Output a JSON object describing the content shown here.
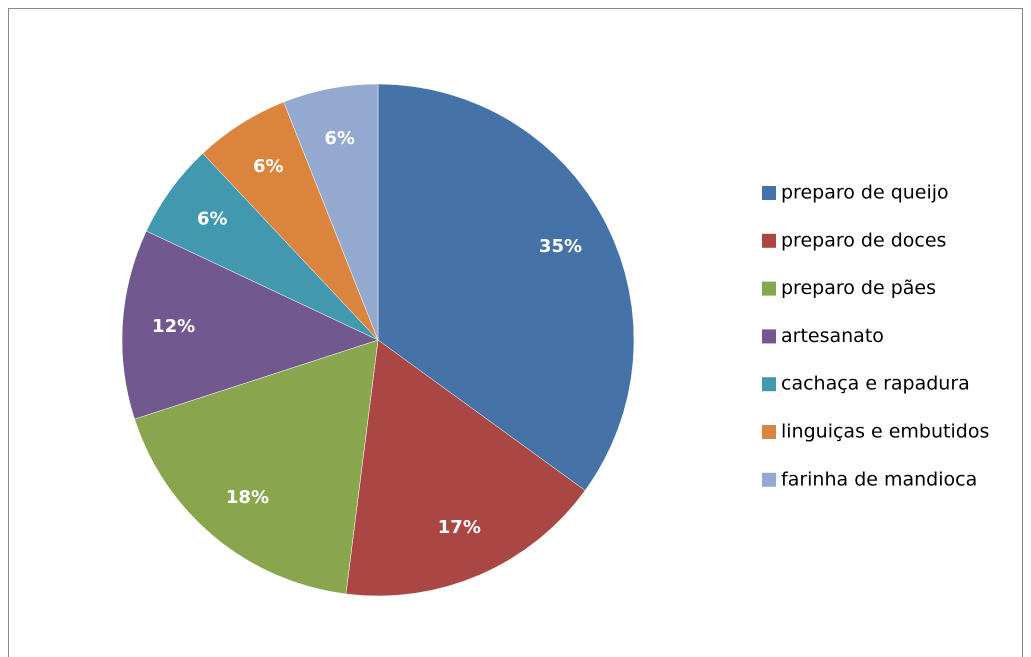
{
  "chart_data": {
    "type": "pie",
    "categories": [
      "preparo de queijo",
      "preparo de doces",
      "preparo de pães",
      "artesanato",
      "cachaça e rapadura",
      "linguiças e embutidos",
      "farinha de mandioca"
    ],
    "values": [
      35,
      17,
      18,
      12,
      6,
      6,
      6
    ],
    "value_labels": [
      "35%",
      "17%",
      "18%",
      "12%",
      "6%",
      "6%",
      "6%"
    ],
    "colors": [
      "#4572a7",
      "#aa4643",
      "#89a54e",
      "#71588f",
      "#4198af",
      "#db843d",
      "#93a9cf"
    ],
    "legend": "right"
  }
}
